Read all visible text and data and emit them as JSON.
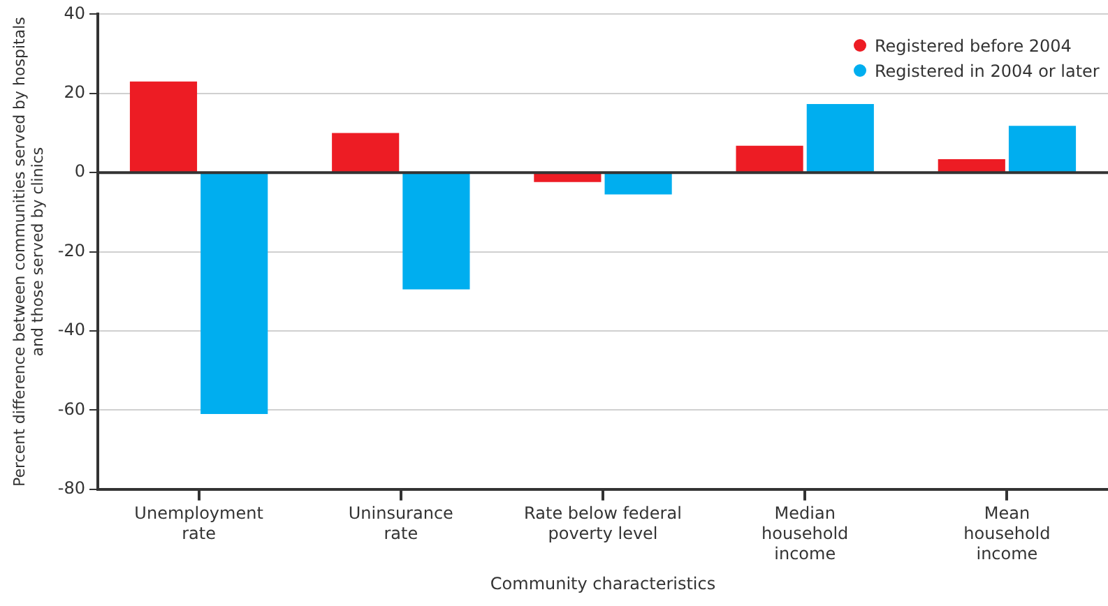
{
  "chart_data": {
    "type": "bar",
    "xlabel": "Community characteristics",
    "ylabel": "Percent difference between communities served by hospitals\nand those served by clinics",
    "categories": [
      "Unemployment\nrate",
      "Uninsurance\nrate",
      "Rate below federal\npoverty level",
      "Median\nhousehold\nincome",
      "Mean\nhousehold\nincome"
    ],
    "series": [
      {
        "name": "Registered before 2004",
        "color": "#ed1c24",
        "values": [
          23,
          10,
          -2.4,
          6.8,
          3.4
        ]
      },
      {
        "name": "Registered in 2004 or later",
        "color": "#00aeef",
        "values": [
          -61,
          -29.5,
          -5.5,
          17.3,
          11.8
        ]
      }
    ],
    "ylim": [
      -80,
      40
    ],
    "yticks": [
      -80,
      -60,
      -40,
      -20,
      0,
      20,
      40
    ],
    "grid": "y",
    "legend": "top right",
    "marker": "circle",
    "ref_lines": [
      {
        "axis": "y",
        "value": 0,
        "color": "#333333"
      }
    ]
  }
}
